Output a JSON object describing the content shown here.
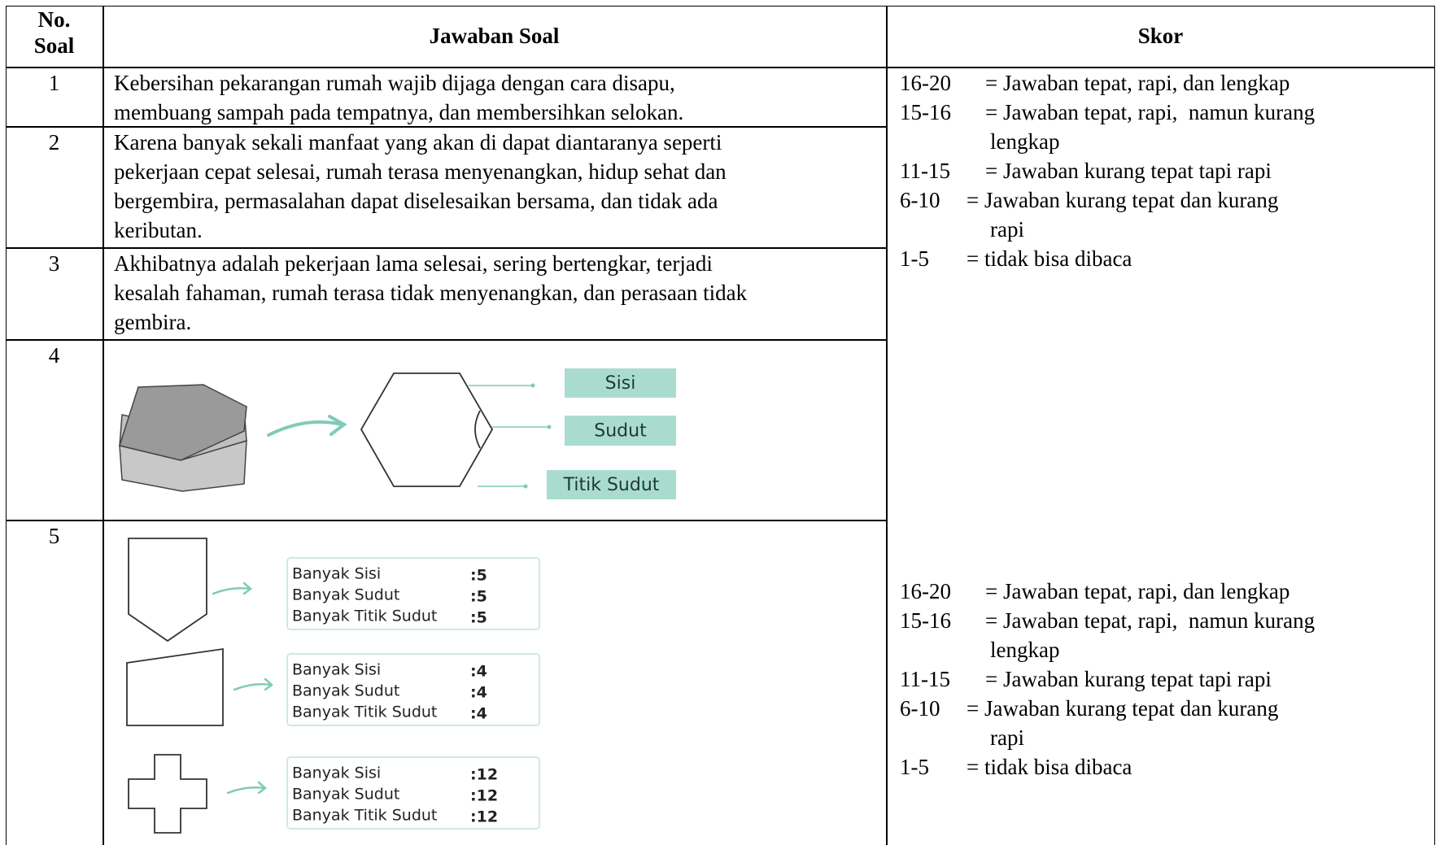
{
  "table": {
    "headers": [
      [
        "No.",
        "Soal"
      ],
      "Jawaban Soal",
      "Skor"
    ],
    "rows": [
      {
        "no": "1",
        "answer_lines": [
          "Kebersihan pekarangan rumah wajib dijaga dengan cara disapu,",
          "membuang sampah pada tempatnya, dan membersihkan selokan."
        ]
      },
      {
        "no": "2",
        "answer_lines": [
          "Karena banyak sekali manfaat yang akan di dapat diantaranya seperti",
          "pekerjaan cepat selesai, rumah terasa menyenangkan, hidup sehat dan",
          "bergembira, permasalahan dapat diselesaikan bersama, dan tidak ada",
          "keributan."
        ]
      },
      {
        "no": "3",
        "answer_lines": [
          "Akhibatnya adalah pekerjaan lama selesai, sering bertengkar, terjadi",
          "kesalah fahaman, rumah terasa tidak menyenangkan, dan perasaan tidak",
          "gembira."
        ]
      },
      {
        "no": "4",
        "diagram_labels": [
          "Sisi",
          "Sudut",
          "Titik Sudut"
        ]
      },
      {
        "no": "5",
        "shapes": [
          {
            "lines": [
              {
                "label": "Banyak Sisi",
                "value": ":5"
              },
              {
                "label": "Banyak Sudut",
                "value": ":5"
              },
              {
                "label": "Banyak Titik Sudut",
                "value": ":5"
              }
            ]
          },
          {
            "lines": [
              {
                "label": "Banyak Sisi",
                "value": ":4"
              },
              {
                "label": "Banyak Sudut",
                "value": ":4"
              },
              {
                "label": "Banyak Titik Sudut",
                "value": ":4"
              }
            ]
          },
          {
            "lines": [
              {
                "label": "Banyak Sisi",
                "value": ":12"
              },
              {
                "label": "Banyak Sudut",
                "value": ":12"
              },
              {
                "label": "Banyak Titik Sudut",
                "value": ":12"
              }
            ]
          }
        ]
      }
    ],
    "skor_blocks": [
      [
        {
          "range": "16-20",
          "text": [
            "= Jawaban tepat, rapi, dan lengkap"
          ]
        },
        {
          "range": "15-16",
          "text": [
            "= Jawaban tepat, rapi,  namun kurang",
            "lengkap"
          ]
        },
        {
          "range": "11-15",
          "text": [
            "= Jawaban kurang tepat tapi rapi"
          ]
        },
        {
          "range": "6-10",
          "text": [
            "= Jawaban kurang tepat dan kurang",
            "rapi"
          ]
        },
        {
          "range": "1-5",
          "text": [
            "= tidak bisa dibaca"
          ]
        }
      ],
      [
        {
          "range": "16-20",
          "text": [
            "= Jawaban tepat, rapi, dan lengkap"
          ]
        },
        {
          "range": "15-16",
          "text": [
            "= Jawaban tepat, rapi,  namun kurang",
            "lengkap"
          ]
        },
        {
          "range": "11-15",
          "text": [
            "= Jawaban kurang tepat tapi rapi"
          ]
        },
        {
          "range": "6-10",
          "text": [
            "= Jawaban kurang tepat dan kurang",
            "rapi"
          ]
        },
        {
          "range": "1-5",
          "text": [
            "= tidak bisa dibaca"
          ]
        }
      ]
    ]
  }
}
